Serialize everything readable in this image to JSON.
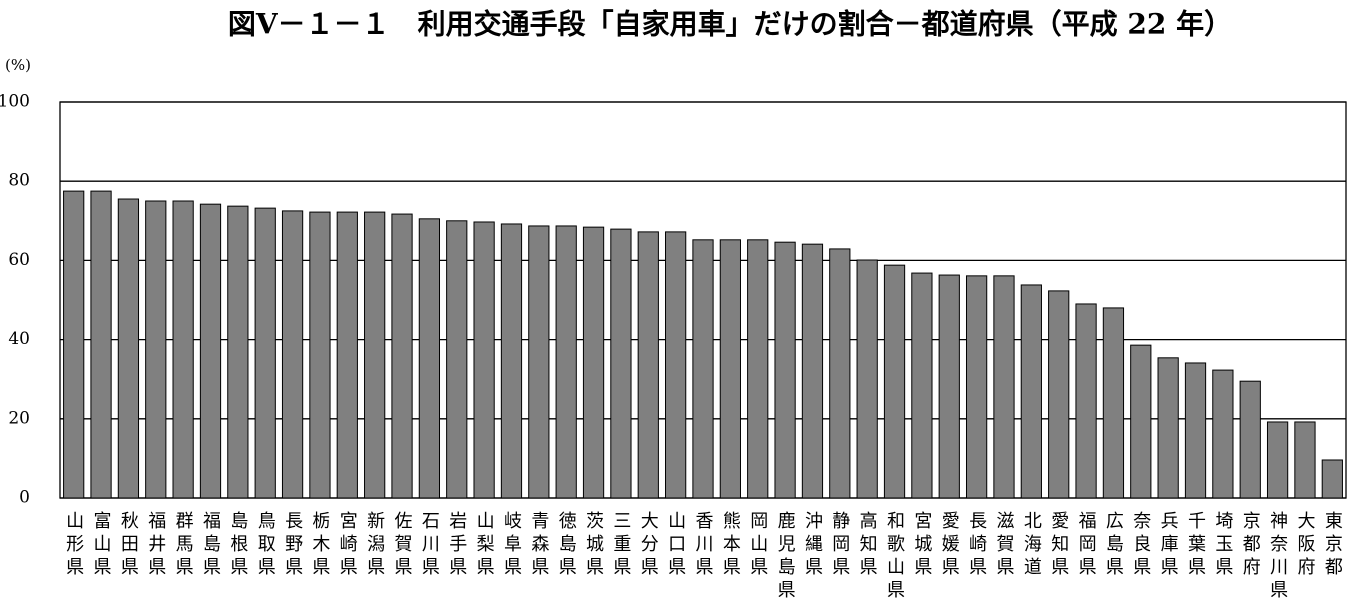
{
  "chart_data": {
    "type": "bar",
    "title": "図Ⅴ－１－１　利用交通手段「自家用車」だけの割合－都道府県（平成 22 年）",
    "y_label": "(%)",
    "categories": [
      "山形県",
      "富山県",
      "秋田県",
      "福井県",
      "群馬県",
      "福島県",
      "島根県",
      "鳥取県",
      "長野県",
      "栃木県",
      "宮崎県",
      "新潟県",
      "佐賀県",
      "石川県",
      "岩手県",
      "山梨県",
      "岐阜県",
      "青森県",
      "徳島県",
      "茨城県",
      "三重県",
      "大分県",
      "山口県",
      "香川県",
      "熊本県",
      "岡山県",
      "鹿児島県",
      "沖縄県",
      "静岡県",
      "高知県",
      "和歌山県",
      "宮城県",
      "愛媛県",
      "長崎県",
      "滋賀県",
      "北海道",
      "愛知県",
      "福岡県",
      "広島県",
      "奈良県",
      "兵庫県",
      "千葉県",
      "埼玉県",
      "京都府",
      "神奈川県",
      "大阪府",
      "東京都"
    ],
    "values": [
      77.5,
      77.5,
      75.5,
      75.0,
      75.0,
      74.2,
      73.7,
      73.2,
      72.5,
      72.2,
      72.2,
      72.2,
      71.7,
      70.5,
      70.0,
      69.7,
      69.2,
      68.7,
      68.7,
      68.4,
      67.9,
      67.2,
      67.2,
      65.2,
      65.2,
      65.2,
      64.6,
      64.1,
      62.9,
      60.1,
      58.8,
      56.8,
      56.3,
      56.1,
      56.1,
      53.8,
      52.3,
      49.0,
      48.0,
      38.6,
      35.4,
      34.1,
      32.3,
      29.5,
      19.2,
      19.2,
      9.6
    ],
    "color": "#808080",
    "ylim": [
      0,
      100
    ],
    "yticks": [
      0,
      20,
      40,
      60,
      80,
      100
    ],
    "grid": true
  }
}
